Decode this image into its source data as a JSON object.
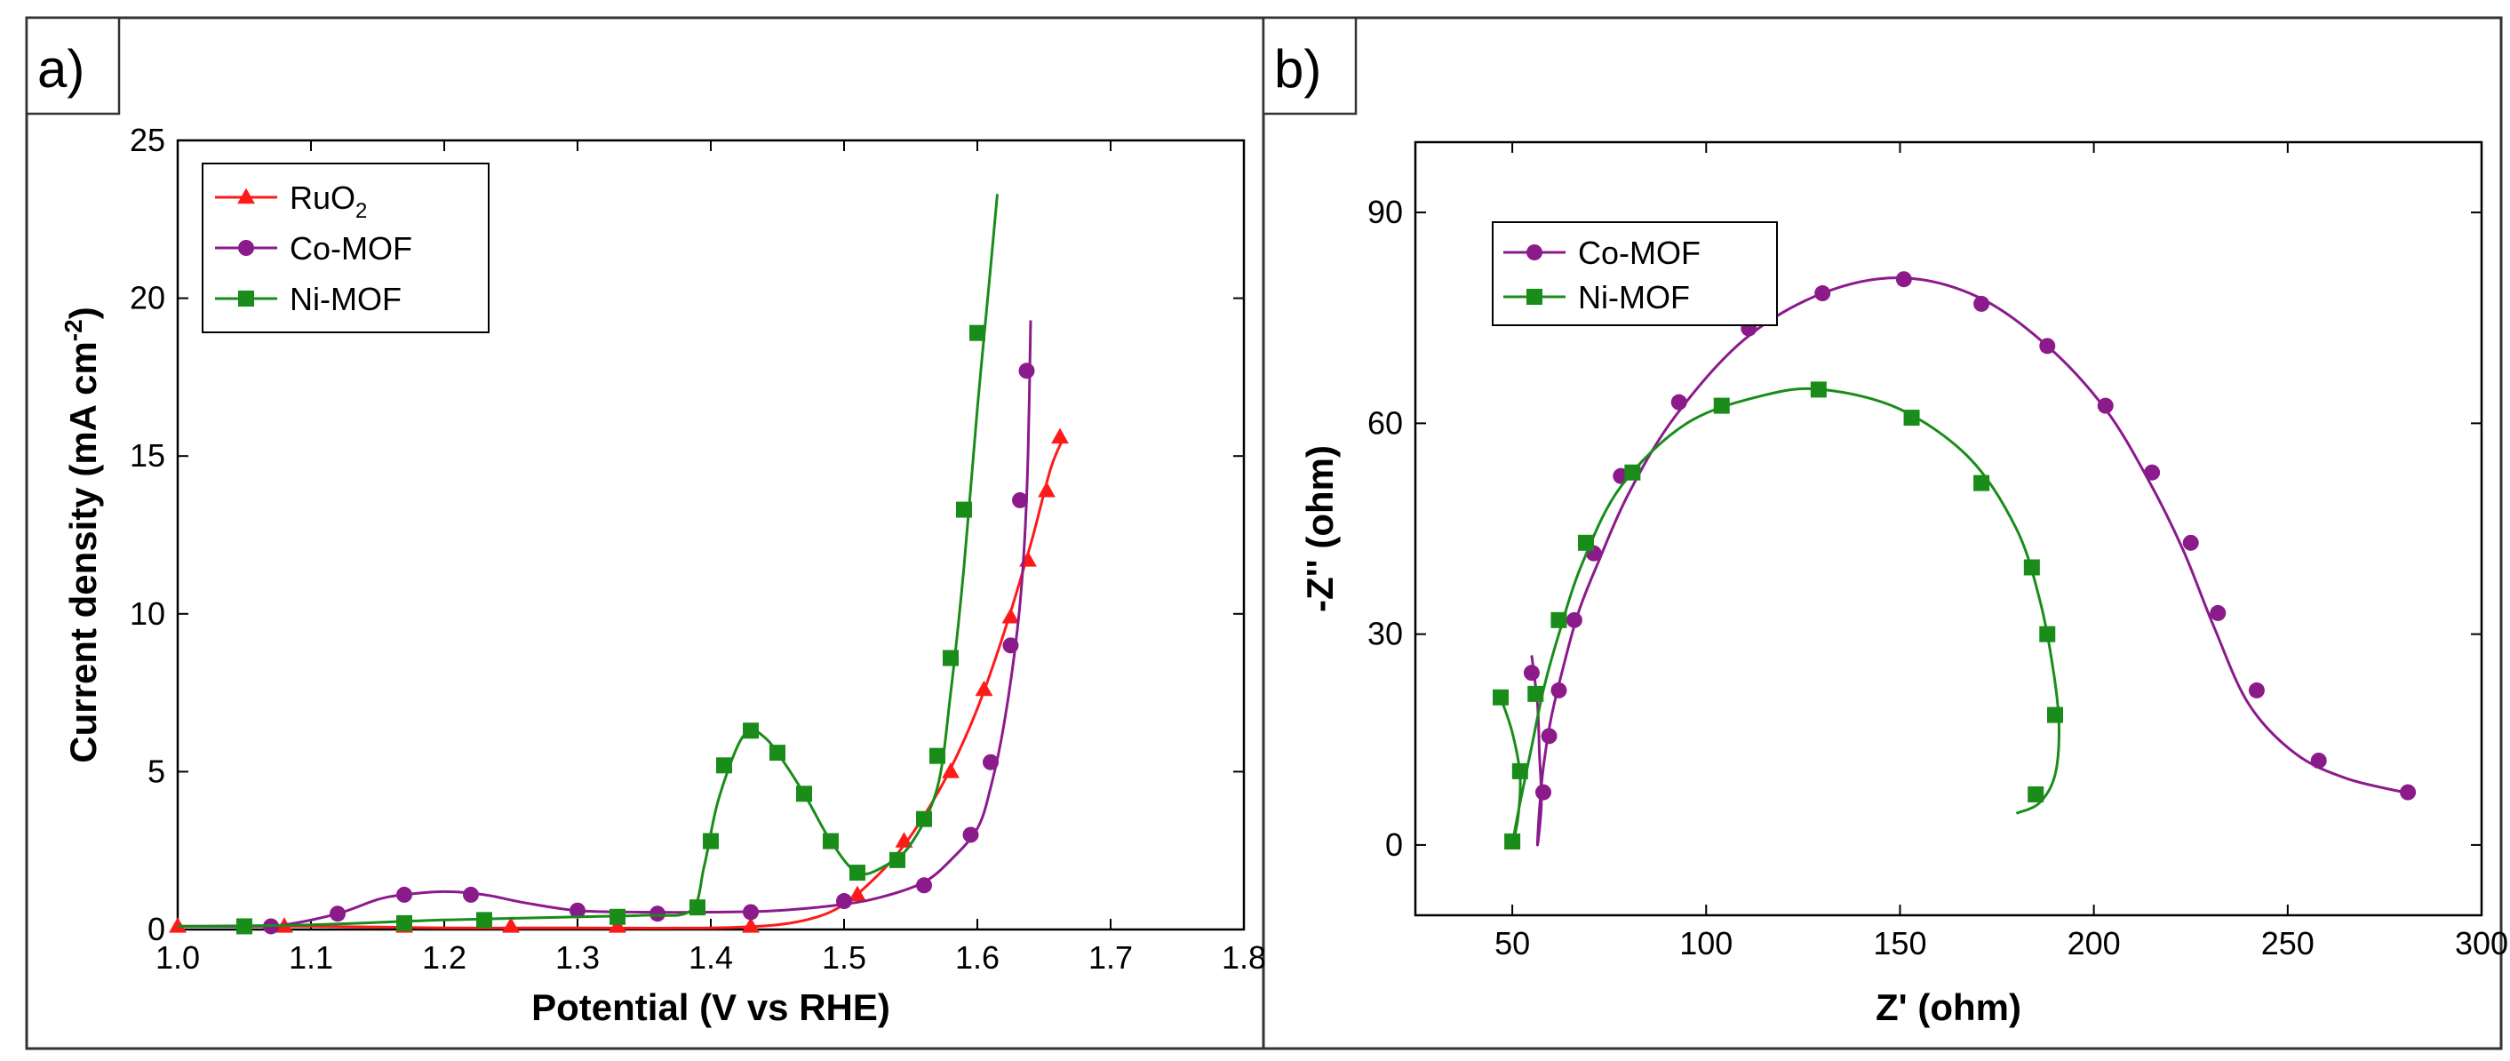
{
  "figure": {
    "panel_a_label": "a)",
    "panel_b_label": "b)"
  },
  "chart_data": [
    {
      "type": "line",
      "panel": "a)",
      "xlabel": "Potential (V vs RHE)",
      "ylabel_main": "Current density (mA cm",
      "ylabel_sup": "-2",
      "ylabel_close": ")",
      "xlim": [
        1.0,
        1.8
      ],
      "ylim": [
        0,
        25
      ],
      "xticks": [
        1.0,
        1.1,
        1.2,
        1.3,
        1.4,
        1.5,
        1.6,
        1.7,
        1.8
      ],
      "xtick_labels": [
        "1.0",
        "1.1",
        "1.2",
        "1.3",
        "1.4",
        "1.5",
        "1.6",
        "1.7",
        "1.8"
      ],
      "yticks": [
        0,
        5,
        10,
        15,
        20,
        25
      ],
      "ytick_labels": [
        "0",
        "5",
        "10",
        "15",
        "20",
        "25"
      ],
      "legend_position": "top-left",
      "series": [
        {
          "name": "RuO2",
          "label_main": "RuO",
          "label_sub": "2",
          "color": "#ff1a1a",
          "marker": "triangle",
          "line": [
            [
              1.0,
              0.1
            ],
            [
              1.1,
              0.1
            ],
            [
              1.2,
              0.05
            ],
            [
              1.3,
              0.05
            ],
            [
              1.4,
              0.05
            ],
            [
              1.45,
              0.15
            ],
            [
              1.48,
              0.4
            ],
            [
              1.5,
              0.8
            ],
            [
              1.52,
              1.5
            ],
            [
              1.54,
              2.4
            ],
            [
              1.56,
              3.6
            ],
            [
              1.58,
              5.1
            ],
            [
              1.6,
              7.0
            ],
            [
              1.62,
              9.4
            ],
            [
              1.64,
              12.2
            ],
            [
              1.655,
              14.6
            ],
            [
              1.665,
              15.6
            ]
          ],
          "markers": [
            [
              1.0,
              0.1
            ],
            [
              1.08,
              0.1
            ],
            [
              1.17,
              0.1
            ],
            [
              1.25,
              0.1
            ],
            [
              1.33,
              0.1
            ],
            [
              1.43,
              0.1
            ],
            [
              1.51,
              1.1
            ],
            [
              1.545,
              2.8
            ],
            [
              1.58,
              5.0
            ],
            [
              1.605,
              7.6
            ],
            [
              1.625,
              9.9
            ],
            [
              1.638,
              11.7
            ],
            [
              1.652,
              13.9
            ],
            [
              1.662,
              15.6
            ]
          ]
        },
        {
          "name": "Co-MOF",
          "label_main": "Co-MOF",
          "label_sub": "",
          "color": "#8b1a8b",
          "marker": "circle",
          "line": [
            [
              1.0,
              0.1
            ],
            [
              1.05,
              0.1
            ],
            [
              1.08,
              0.15
            ],
            [
              1.12,
              0.5
            ],
            [
              1.15,
              0.95
            ],
            [
              1.17,
              1.1
            ],
            [
              1.2,
              1.2
            ],
            [
              1.23,
              1.1
            ],
            [
              1.26,
              0.85
            ],
            [
              1.3,
              0.6
            ],
            [
              1.35,
              0.55
            ],
            [
              1.4,
              0.55
            ],
            [
              1.45,
              0.6
            ],
            [
              1.5,
              0.8
            ],
            [
              1.53,
              1.05
            ],
            [
              1.56,
              1.5
            ],
            [
              1.58,
              2.2
            ],
            [
              1.6,
              3.2
            ],
            [
              1.61,
              4.5
            ],
            [
              1.62,
              6.5
            ],
            [
              1.63,
              9.5
            ],
            [
              1.635,
              12.0
            ],
            [
              1.638,
              15.0
            ],
            [
              1.64,
              19.3
            ]
          ],
          "markers": [
            [
              1.07,
              0.1
            ],
            [
              1.12,
              0.5
            ],
            [
              1.17,
              1.1
            ],
            [
              1.22,
              1.1
            ],
            [
              1.3,
              0.6
            ],
            [
              1.36,
              0.5
            ],
            [
              1.43,
              0.55
            ],
            [
              1.5,
              0.9
            ],
            [
              1.56,
              1.4
            ],
            [
              1.595,
              3.0
            ],
            [
              1.61,
              5.3
            ],
            [
              1.625,
              9.0
            ],
            [
              1.632,
              13.6
            ],
            [
              1.637,
              17.7
            ]
          ]
        },
        {
          "name": "Ni-MOF",
          "label_main": "Ni-MOF",
          "label_sub": "",
          "color": "#1a8c1a",
          "marker": "square",
          "line": [
            [
              1.0,
              0.1
            ],
            [
              1.1,
              0.15
            ],
            [
              1.2,
              0.3
            ],
            [
              1.3,
              0.4
            ],
            [
              1.35,
              0.45
            ],
            [
              1.385,
              0.6
            ],
            [
              1.395,
              2.0
            ],
            [
              1.405,
              4.0
            ],
            [
              1.42,
              5.8
            ],
            [
              1.43,
              6.3
            ],
            [
              1.44,
              6.1
            ],
            [
              1.45,
              5.6
            ],
            [
              1.47,
              4.3
            ],
            [
              1.49,
              2.8
            ],
            [
              1.51,
              1.8
            ],
            [
              1.53,
              2.0
            ],
            [
              1.55,
              2.7
            ],
            [
              1.57,
              4.5
            ],
            [
              1.58,
              7.5
            ],
            [
              1.59,
              11.5
            ],
            [
              1.6,
              16.5
            ],
            [
              1.61,
              21.0
            ],
            [
              1.615,
              23.3
            ]
          ],
          "markers": [
            [
              1.05,
              0.1
            ],
            [
              1.17,
              0.2
            ],
            [
              1.23,
              0.3
            ],
            [
              1.33,
              0.4
            ],
            [
              1.39,
              0.7
            ],
            [
              1.4,
              2.8
            ],
            [
              1.41,
              5.2
            ],
            [
              1.43,
              6.3
            ],
            [
              1.45,
              5.6
            ],
            [
              1.47,
              4.3
            ],
            [
              1.49,
              2.8
            ],
            [
              1.51,
              1.8
            ],
            [
              1.54,
              2.2
            ],
            [
              1.56,
              3.5
            ],
            [
              1.57,
              5.5
            ],
            [
              1.58,
              8.6
            ],
            [
              1.59,
              13.3
            ],
            [
              1.6,
              18.9
            ]
          ]
        }
      ]
    },
    {
      "type": "scatter",
      "panel": "b)",
      "xlabel": "Z' (ohm)",
      "ylabel": "-Z'' (ohm)",
      "xlim": [
        25,
        300
      ],
      "ylim": [
        -10,
        100
      ],
      "xticks": [
        50,
        100,
        150,
        200,
        250,
        300
      ],
      "xtick_labels": [
        "50",
        "100",
        "150",
        "200",
        "250",
        "300"
      ],
      "yticks": [
        0,
        30,
        60,
        90
      ],
      "ytick_labels": [
        "0",
        "30",
        "60",
        "90"
      ],
      "legend_position": "top-left",
      "series": [
        {
          "name": "Co-MOF",
          "color": "#8b1a8b",
          "marker": "circle",
          "line": [
            [
              55,
              27
            ],
            [
              56.5,
              20
            ],
            [
              57,
              13
            ],
            [
              57.5,
              6
            ],
            [
              56.5,
              0
            ],
            [
              57,
              5
            ],
            [
              58,
              11
            ],
            [
              60,
              18
            ],
            [
              63,
              25
            ],
            [
              67,
              33
            ],
            [
              72,
              40
            ],
            [
              80,
              50
            ],
            [
              92,
              61
            ],
            [
              110,
              72
            ],
            [
              130,
              78.5
            ],
            [
              150,
              80.7
            ],
            [
              170,
              78
            ],
            [
              188,
              71
            ],
            [
              203,
              62
            ],
            [
              214,
              52
            ],
            [
              223,
              42
            ],
            [
              231,
              31
            ],
            [
              240,
              20
            ],
            [
              252,
              13
            ],
            [
              265,
              9.5
            ],
            [
              280,
              7.5
            ]
          ],
          "markers": [
            [
              55,
              24.5
            ],
            [
              58,
              7.5
            ],
            [
              59.5,
              15.5
            ],
            [
              62,
              22
            ],
            [
              66,
              32
            ],
            [
              71,
              41.5
            ],
            [
              78,
              52.5
            ],
            [
              93,
              63
            ],
            [
              111,
              73.5
            ],
            [
              130,
              78.5
            ],
            [
              151,
              80.5
            ],
            [
              171,
              77
            ],
            [
              188,
              71
            ],
            [
              203,
              62.5
            ],
            [
              215,
              53
            ],
            [
              225,
              43
            ],
            [
              232,
              33
            ],
            [
              242,
              22
            ],
            [
              258,
              12
            ],
            [
              281,
              7.5
            ]
          ]
        },
        {
          "name": "Ni-MOF",
          "color": "#1a8c1a",
          "marker": "square",
          "line": [
            [
              47,
              21
            ],
            [
              50,
              16
            ],
            [
              52,
              10
            ],
            [
              51.5,
              4
            ],
            [
              50,
              0
            ],
            [
              52,
              6
            ],
            [
              55,
              14
            ],
            [
              58,
              22
            ],
            [
              62,
              30
            ],
            [
              68,
              40
            ],
            [
              78,
              51
            ],
            [
              95,
              60
            ],
            [
              115,
              64
            ],
            [
              130,
              64.8
            ],
            [
              150,
              62
            ],
            [
              168,
              55
            ],
            [
              180,
              45
            ],
            [
              186,
              35
            ],
            [
              189.5,
              25
            ],
            [
              191,
              17
            ],
            [
              190,
              10
            ],
            [
              186,
              6
            ],
            [
              180,
              4.5
            ]
          ],
          "markers": [
            [
              47,
              21
            ],
            [
              52,
              10.5
            ],
            [
              50,
              0.5
            ],
            [
              56,
              21.5
            ],
            [
              62,
              32
            ],
            [
              69,
              43
            ],
            [
              81,
              53
            ],
            [
              104,
              62.5
            ],
            [
              129,
              64.8
            ],
            [
              153,
              60.8
            ],
            [
              171,
              51.5
            ],
            [
              184,
              39.5
            ],
            [
              188,
              30
            ],
            [
              190,
              18.5
            ],
            [
              185,
              7.2
            ]
          ]
        }
      ]
    }
  ]
}
